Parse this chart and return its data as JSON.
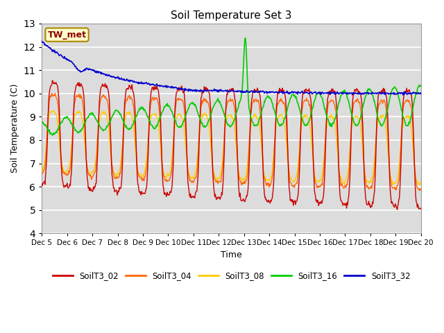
{
  "title": "Soil Temperature Set 3",
  "xlabel": "Time",
  "ylabel": "Soil Temperature (C)",
  "ylim": [
    4.0,
    13.0
  ],
  "yticks": [
    4.0,
    5.0,
    6.0,
    7.0,
    8.0,
    9.0,
    10.0,
    11.0,
    12.0,
    13.0
  ],
  "annotation": "TW_met",
  "annotation_color": "#8B0000",
  "annotation_bg": "#FFFFCC",
  "series_colors": {
    "SoilT3_02": "#CC0000",
    "SoilT3_04": "#FF6600",
    "SoilT3_08": "#FFCC00",
    "SoilT3_16": "#00CC00",
    "SoilT3_32": "#0000CC"
  },
  "bg_color": "#DCDCDC",
  "n_days": 15,
  "start_day": 5
}
